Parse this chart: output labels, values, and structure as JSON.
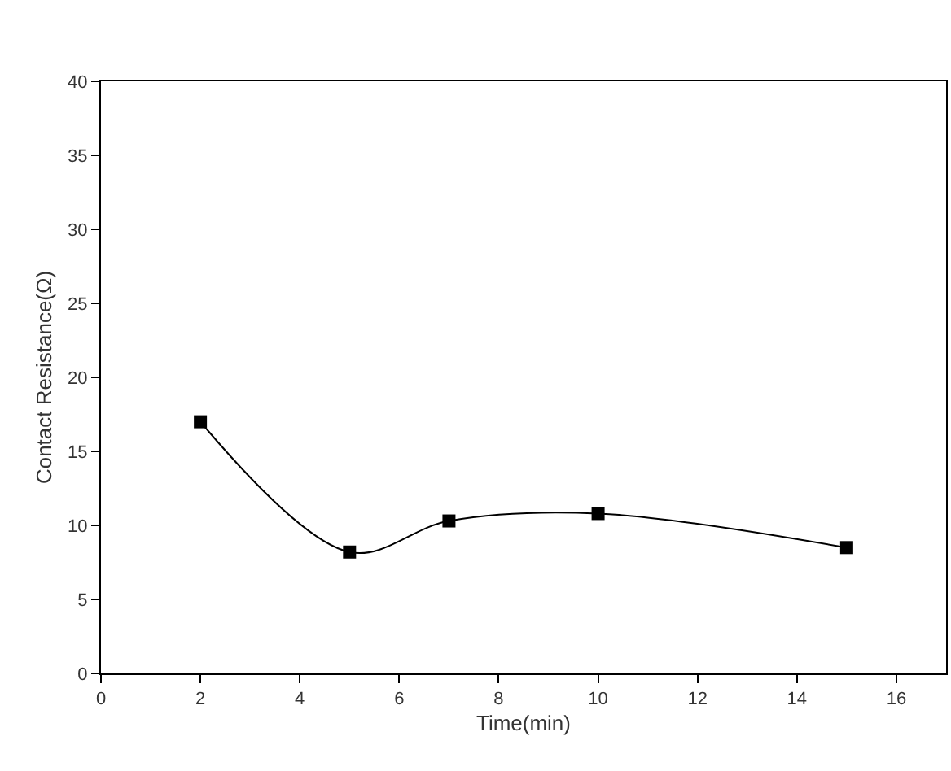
{
  "chart_data": {
    "type": "line",
    "xlabel": "Time(min)",
    "ylabel": "Contact Resistance(Ω)",
    "x": [
      2,
      5,
      7,
      10,
      15
    ],
    "series": [
      {
        "color": "#000000",
        "values": [
          17,
          8.2,
          10.3,
          10.8,
          8.5
        ]
      }
    ],
    "xlim": [
      0,
      17
    ],
    "xticks": [
      0,
      2,
      4,
      6,
      8,
      10,
      12,
      14,
      16
    ],
    "ylim": [
      0,
      40
    ],
    "yticks": [
      0,
      5,
      10,
      15,
      20,
      25,
      30,
      35,
      40
    ],
    "grid": false,
    "marker": "square",
    "line_style": "solid"
  }
}
